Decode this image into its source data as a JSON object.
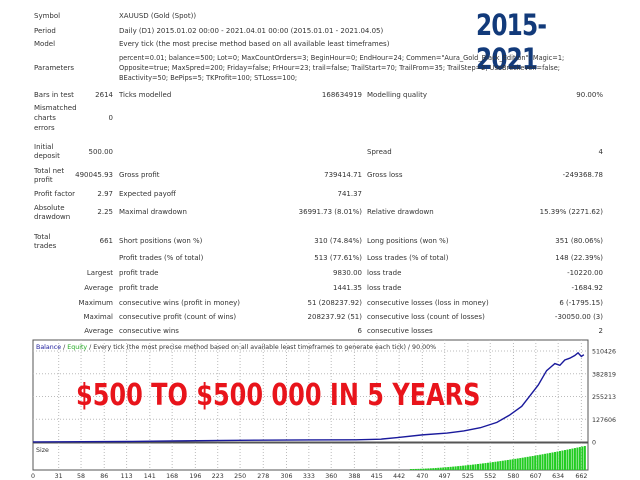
{
  "header_badge": "2015-2021",
  "info": {
    "symbol": {
      "label": "Symbol",
      "value": "XAUUSD (Gold (Spot))"
    },
    "period": {
      "label": "Period",
      "value": "Daily (D1) 2015.01.02 00:00 - 2021.04.01 00:00 (2015.01.01 - 2021.04.05)"
    },
    "model": {
      "label": "Model",
      "value": "Every tick (the most precise method based on all available least timeframes)"
    },
    "parameters": {
      "label": "Parameters",
      "lines": [
        "percent=0.01; balance=500; Lot=0; MaxCountOrders=3; BeginHour=0; EndHour=24; Commen=\"Aura_Gold_Black_Edition\"; Magic=1;",
        "Opposite=true; MaxSpred=200; Friday=false; FrHour=23; trail=false; TrailStart=70; TrailFrom=35; TrailStep=2; UseBreckeven=false;",
        "BEactivity=50; BePips=5; TKProfit=100; STLoss=100;"
      ]
    }
  },
  "stats": {
    "bars_in_test": {
      "label": "Bars in test",
      "value": "2614"
    },
    "ticks_modelled": {
      "label": "Ticks modelled",
      "value": "168634919"
    },
    "modelling_quality": {
      "label": "Modelling quality",
      "value": "90.00%"
    },
    "mismatched": {
      "label": [
        "Mismatched",
        "charts",
        "errors"
      ],
      "value": "0"
    },
    "initial_deposit": {
      "label": [
        "Initial",
        "deposit"
      ],
      "value": "500.00"
    },
    "spread": {
      "label": "Spread",
      "value": "4"
    },
    "total_net_profit": {
      "label": [
        "Total net",
        "profit"
      ],
      "value": "490045.93"
    },
    "gross_profit": {
      "label": "Gross profit",
      "value": "739414.71"
    },
    "gross_loss": {
      "label": "Gross loss",
      "value": "-249368.78"
    },
    "profit_factor": {
      "label": "Profit factor",
      "value": "2.97"
    },
    "expected_payoff": {
      "label": "Expected payoff",
      "value": "741.37"
    },
    "absolute_drawdown": {
      "label": [
        "Absolute",
        "drawdown"
      ],
      "value": "2.25"
    },
    "maximal_drawdown": {
      "label": "Maximal drawdown",
      "value": "36991.73 (8.01%)"
    },
    "relative_drawdown": {
      "label": "Relative drawdown",
      "value": "15.39% (2271.62)"
    },
    "total_trades": {
      "label": [
        "Total",
        "trades"
      ],
      "value": "661"
    },
    "short_positions": {
      "label": "Short positions (won %)",
      "value": "310 (74.84%)"
    },
    "long_positions": {
      "label": "Long positions (won %)",
      "value": "351 (80.06%)"
    }
  },
  "trade_rows": [
    {
      "prefix": "",
      "l1": "Profit trades (% of total)",
      "v1": "513 (77.61%)",
      "l2": "Loss trades (% of total)",
      "v2": "148 (22.39%)"
    },
    {
      "prefix": "Largest",
      "l1": "profit trade",
      "v1": "9830.00",
      "l2": "loss trade",
      "v2": "-10220.00"
    },
    {
      "prefix": "Average",
      "l1": "profit trade",
      "v1": "1441.35",
      "l2": "loss trade",
      "v2": "-1684.92"
    },
    {
      "prefix": "Maximum",
      "l1": "consecutive wins (profit in money)",
      "v1": "51 (208237.92)",
      "l2": "consecutive losses (loss in money)",
      "v2": "6 (-1795.15)"
    },
    {
      "prefix": "Maximal",
      "l1": "consecutive profit (count of wins)",
      "v1": "208237.92 (51)",
      "l2": "consecutive loss (count of losses)",
      "v2": "-30050.00 (3)"
    },
    {
      "prefix": "Average",
      "l1": "consecutive wins",
      "v1": "6",
      "l2": "consecutive losses",
      "v2": "2"
    }
  ],
  "overlay_text": "$500 TO $500 000 IN 5 YEARS",
  "chart_data": {
    "type": "line",
    "title_parts": {
      "balance": "Balance",
      "sep": " / ",
      "equity": "Equity",
      "rest": " / Every tick (the most precise method based on all available least timeframes to generate each tick) / 90.00%"
    },
    "colors": {
      "balance": "#1a1a9c",
      "equity": "#22aa22",
      "size": "#22cc22"
    },
    "ylim": [
      0,
      510426
    ],
    "y_ticks": [
      "510426",
      "382819",
      "255213",
      "127606",
      "0"
    ],
    "x_ticks": [
      "0",
      "31",
      "58",
      "86",
      "113",
      "141",
      "168",
      "196",
      "223",
      "250",
      "278",
      "306",
      "333",
      "360",
      "388",
      "415",
      "442",
      "470",
      "497",
      "525",
      "552",
      "580",
      "607",
      "634",
      "662"
    ],
    "xlim": [
      0,
      670
    ],
    "grid": true,
    "balance": {
      "x": [
        0,
        60,
        120,
        168,
        230,
        270,
        330,
        390,
        420,
        440,
        470,
        500,
        520,
        540,
        560,
        575,
        590,
        600,
        610,
        615,
        620,
        625,
        630,
        636,
        642,
        648,
        654,
        658,
        662,
        665
      ],
      "y": [
        500,
        1500,
        3000,
        6000,
        9000,
        10000,
        11500,
        12500,
        16000,
        25000,
        40000,
        50000,
        62000,
        80000,
        110000,
        150000,
        200000,
        260000,
        320000,
        360000,
        400000,
        420000,
        440000,
        430000,
        460000,
        470000,
        485000,
        500000,
        480000,
        490000
      ]
    },
    "size_panel": {
      "label": "Size",
      "start": 455,
      "end": 665
    }
  }
}
